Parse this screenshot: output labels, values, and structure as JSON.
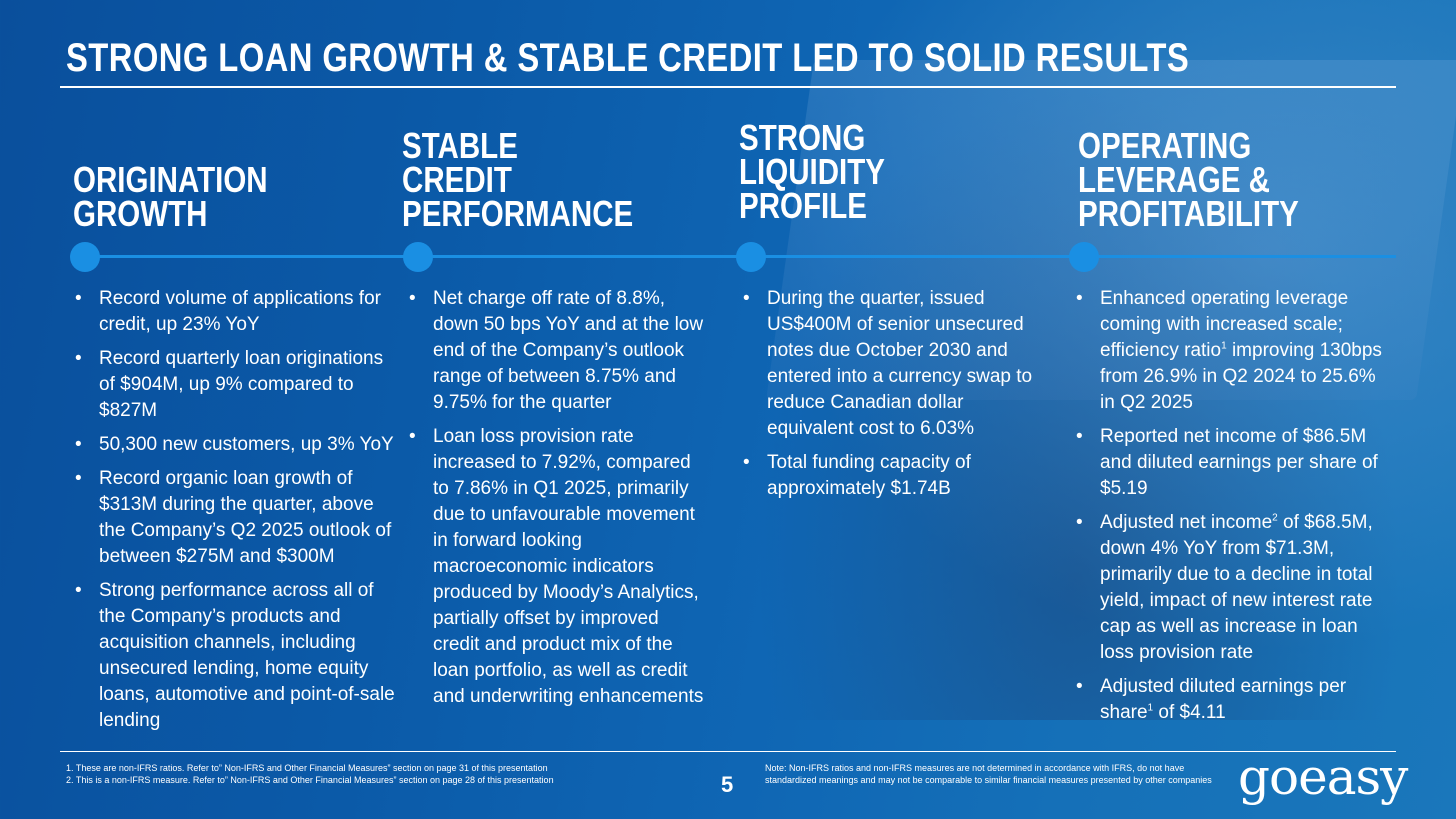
{
  "title": "STRONG LOAN GROWTH & STABLE CREDIT LED TO SOLID RESULTS",
  "columns": [
    {
      "heading": [
        "ORIGINATION",
        "GROWTH"
      ],
      "bullets": [
        "Record volume of applications for credit, up 23% YoY",
        "Record quarterly loan originations of $904M, up 9% compared to $827M",
        "50,300 new customers, up 3% YoY",
        "Record organic loan growth of $313M during the quarter, above the Company’s Q2 2025 outlook of between $275M and $300M",
        "Strong performance across all of the Company’s products and acquisition channels, including unsecured lending, home equity loans, automotive and point-of-sale lending"
      ]
    },
    {
      "heading": [
        "STABLE",
        "CREDIT",
        "PERFORMANCE"
      ],
      "bullets": [
        "Net charge off rate of 8.8%, down 50 bps YoY and at the low end  of the Company’s outlook range of between 8.75% and 9.75% for the quarter",
        "Loan loss provision rate increased to 7.92%, compared to 7.86% in Q1 2025, primarily due to unfavourable movement in forward looking macroeconomic indicators produced by Moody’s Analytics, partially offset by improved credit and product mix of the loan portfolio, as well as credit and underwriting enhancements"
      ]
    },
    {
      "heading": [
        "STRONG",
        "LIQUIDITY",
        "PROFILE"
      ],
      "bullets": [
        "During the quarter, issued US$400M of senior unsecured notes due October 2030 and entered into a currency swap to reduce Canadian dollar equivalent cost to 6.03%",
        "Total funding capacity of approximately $1.74B"
      ]
    },
    {
      "heading": [
        "OPERATING",
        "LEVERAGE &",
        "PROFITABILITY"
      ],
      "bullets": [
        {
          "before": "Enhanced operating leverage coming with increased scale; efficiency ratio",
          "sup": "1",
          "after": " improving 130bps from 26.9% in Q2 2024 to 25.6% in Q2 2025"
        },
        {
          "before": "Reported net income of $86.5M and diluted earnings per share of $5.19",
          "sup": "",
          "after": ""
        },
        {
          "before": "Adjusted net income",
          "sup": "2",
          "after": " of $68.5M, down 4% YoY from $71.3M, primarily due to a decline in total yield, impact of new interest rate cap as well as increase in loan loss provision rate"
        },
        {
          "before": "Adjusted diluted earnings per share",
          "sup": "1",
          "after": " of $4.11"
        }
      ]
    }
  ],
  "footnotes": [
    "1.   These are non-IFRS ratios. Refer to” Non-IFRS and Other Financial Measures” section on page 31 of this presentation",
    "2.   This is a non-IFRS measure. Refer to” Non-IFRS and Other Financial Measures” section on page 28 of this presentation"
  ],
  "page_number": "5",
  "note": "Note: Non-IFRS ratios and non-IFRS measures are not determined in accordance with IFRS, do not have standardized meanings and may not be comparable to similar financial measures presented by other companies",
  "logo_text": "goeasy",
  "colors": {
    "accent": "#1a8fe3",
    "background": "#0b5aa8"
  }
}
